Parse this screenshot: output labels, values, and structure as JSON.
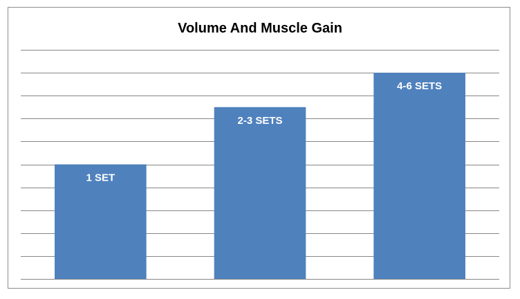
{
  "chart_data": {
    "type": "bar",
    "title": "Volume And Muscle Gain",
    "xlabel": "",
    "ylabel": "",
    "categories": [
      "1 SET",
      "2-3 SETS",
      "4-6 SETS"
    ],
    "values": [
      5,
      7.5,
      9
    ],
    "ylim": [
      0,
      10
    ],
    "grid": true,
    "legend": "none",
    "bar_color": "#4f81bd",
    "data_labels": [
      "1 SET",
      "2-3 SETS",
      "4-6 SETS"
    ]
  }
}
